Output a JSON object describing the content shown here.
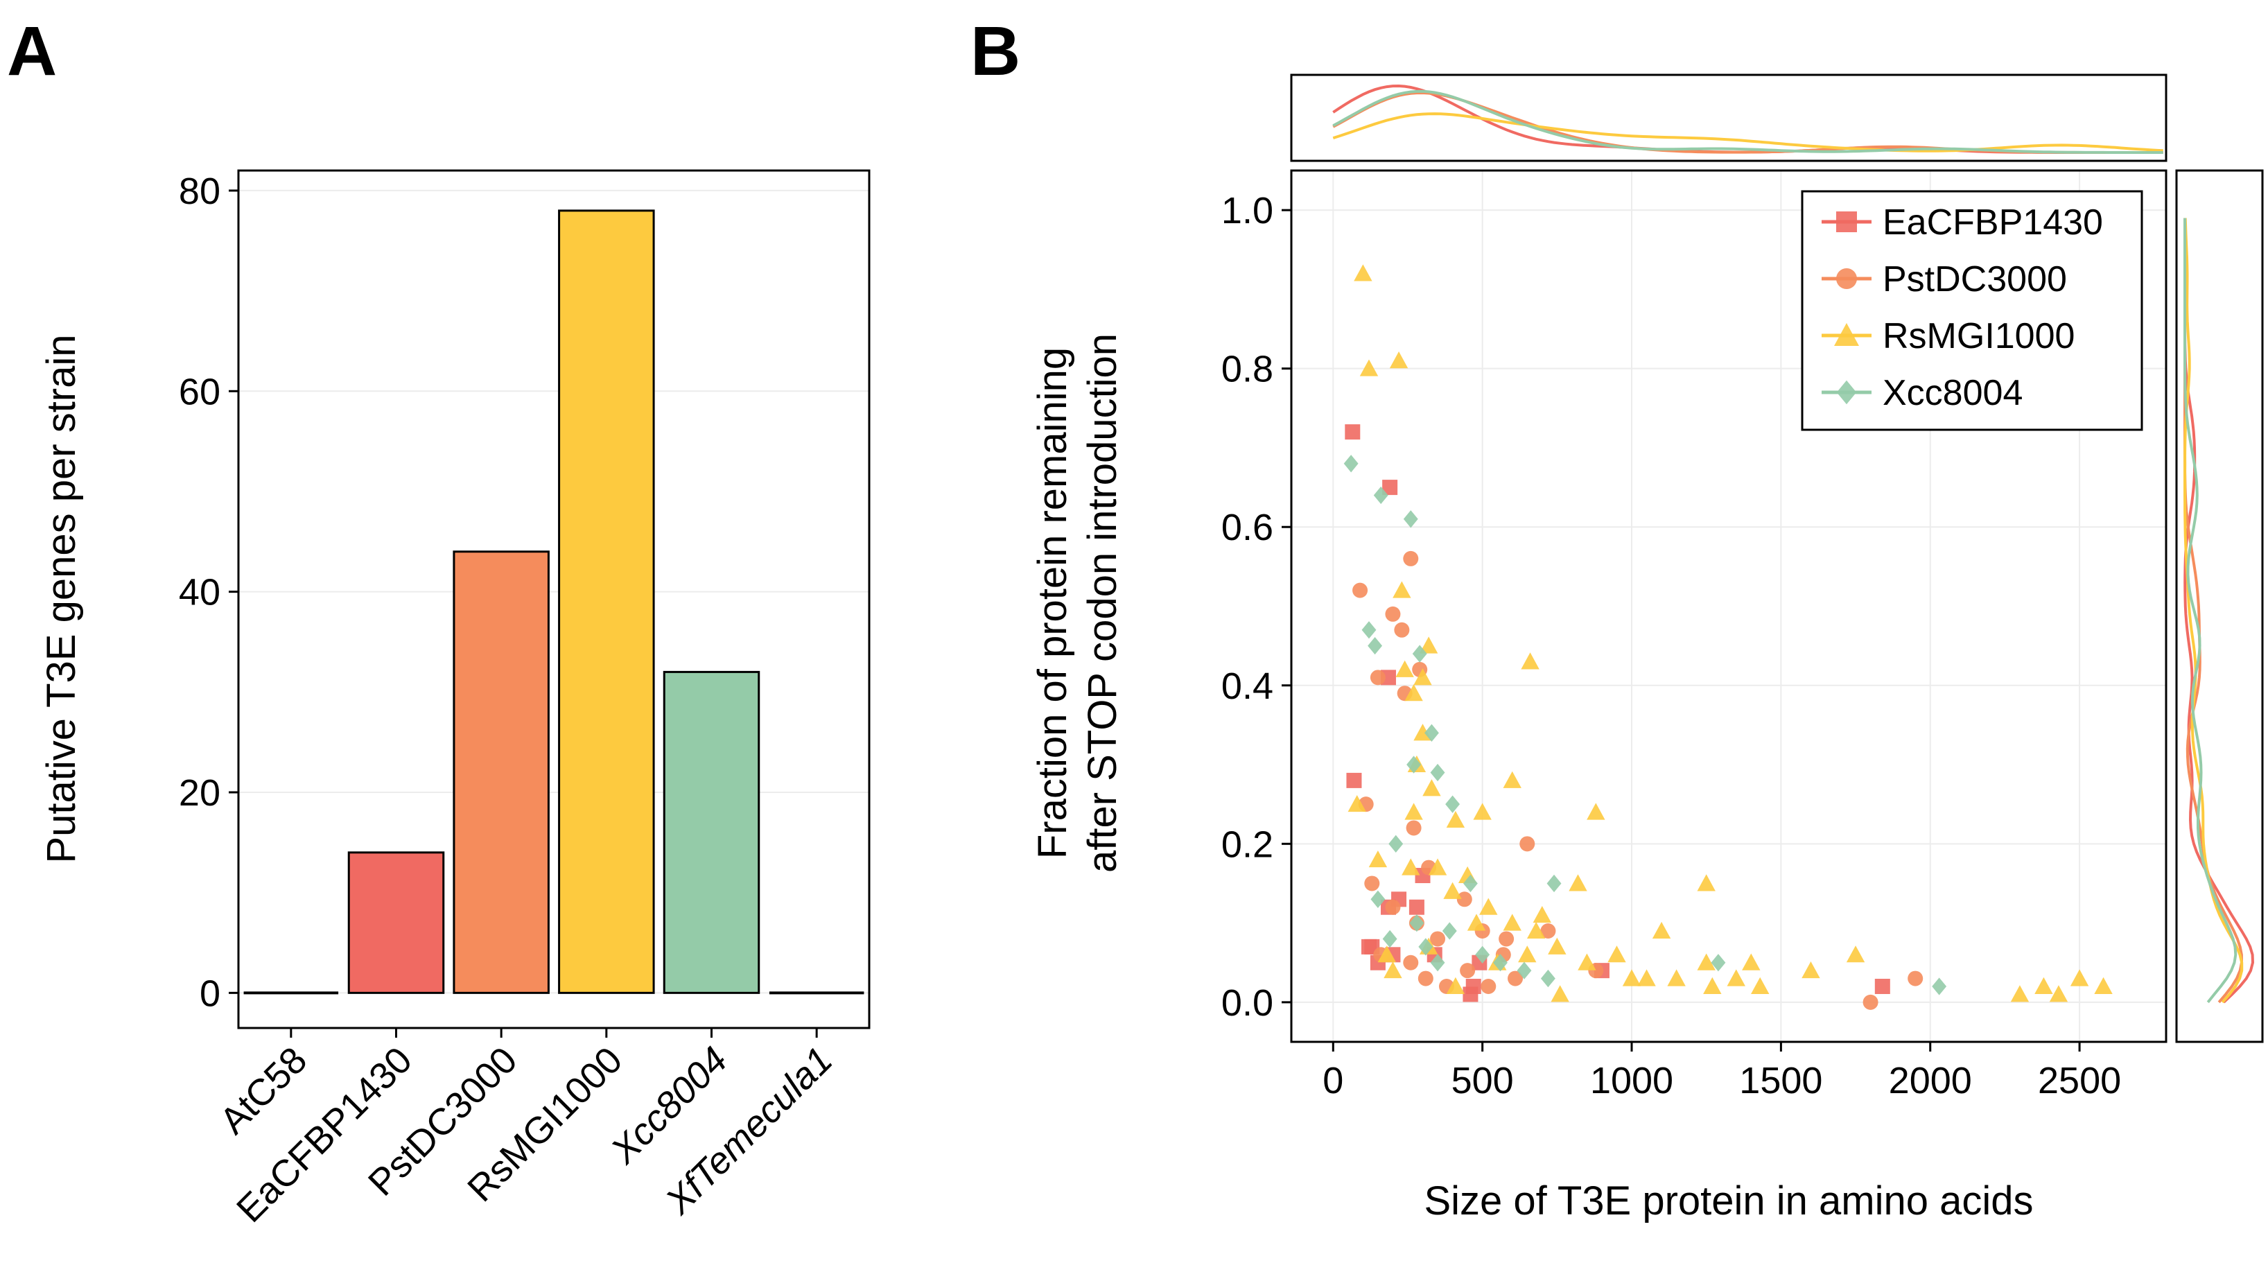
{
  "panels": {
    "a_label": "A",
    "b_label": "B"
  },
  "chart_data": [
    {
      "type": "bar",
      "panel": "A",
      "categories": [
        "AtC58",
        "EaCFBP1430",
        "PstDC3000",
        "RsMGI1000",
        "Xcc8004",
        "XfTemecula1"
      ],
      "italic_categories": [
        "Xcc8004",
        "XfTemecula1"
      ],
      "values": [
        0,
        14,
        44,
        78,
        32,
        0
      ],
      "colors": [
        "#f06a62",
        "#f06a62",
        "#f58c5c",
        "#fdca3f",
        "#94cba8",
        "#94cba8"
      ],
      "xlabel": "",
      "ylabel": "Putative T3E genes per strain",
      "ylim": [
        -3.5,
        82
      ],
      "yticks": [
        0,
        20,
        40,
        60,
        80
      ],
      "grid": true
    },
    {
      "type": "scatter",
      "panel": "B",
      "xlabel": "Size of T3E protein in amino acids",
      "ylabel_lines": [
        "Fraction of protein remaining",
        "after STOP codon introduction"
      ],
      "xlim": [
        -140,
        2790
      ],
      "ylim": [
        -0.05,
        1.05
      ],
      "xticks": [
        0,
        500,
        1000,
        1500,
        2000,
        2500
      ],
      "yticks": [
        "0.0",
        "0.2",
        "0.4",
        "0.6",
        "0.8",
        "1.0"
      ],
      "legend_position": "top-right",
      "grid": true,
      "marginal_density": true,
      "series": [
        {
          "name": "EaCFBP1430",
          "marker": "square",
          "color": "#f06a62",
          "x": [
            65,
            190,
            185,
            70,
            185,
            130,
            280,
            340,
            120,
            150,
            200,
            460,
            900,
            1840,
            300,
            220,
            470,
            490
          ],
          "y": [
            0.72,
            0.65,
            0.41,
            0.28,
            0.12,
            0.07,
            0.12,
            0.06,
            0.07,
            0.05,
            0.06,
            0.01,
            0.04,
            0.02,
            0.16,
            0.13,
            0.02,
            0.05
          ]
        },
        {
          "name": "PstDC3000",
          "marker": "circle",
          "color": "#f58c5c",
          "x": [
            90,
            260,
            200,
            230,
            150,
            290,
            240,
            110,
            270,
            320,
            130,
            200,
            280,
            350,
            500,
            650,
            570,
            450,
            580,
            720,
            880,
            1800,
            1950,
            260,
            310,
            380,
            160,
            520,
            440,
            610
          ],
          "y": [
            0.52,
            0.56,
            0.49,
            0.47,
            0.41,
            0.42,
            0.39,
            0.25,
            0.22,
            0.17,
            0.15,
            0.12,
            0.1,
            0.08,
            0.09,
            0.2,
            0.06,
            0.04,
            0.08,
            0.09,
            0.04,
            0.0,
            0.03,
            0.05,
            0.03,
            0.02,
            0.06,
            0.02,
            0.13,
            0.03
          ]
        },
        {
          "name": "RsMGI1000",
          "marker": "triangle",
          "color": "#fdca3f",
          "x": [
            100,
            120,
            220,
            230,
            320,
            240,
            300,
            270,
            300,
            280,
            330,
            660,
            270,
            410,
            600,
            500,
            80,
            150,
            260,
            350,
            880,
            400,
            450,
            520,
            600,
            680,
            700,
            750,
            820,
            850,
            950,
            1000,
            1050,
            1150,
            1250,
            1270,
            1350,
            1400,
            1430,
            1750,
            2300,
            2380,
            2430,
            2500,
            2580,
            1250,
            1600,
            1100,
            550,
            650,
            480,
            320,
            180,
            200,
            410,
            760
          ],
          "y": [
            0.92,
            0.8,
            0.81,
            0.52,
            0.45,
            0.42,
            0.41,
            0.39,
            0.34,
            0.3,
            0.27,
            0.43,
            0.24,
            0.23,
            0.28,
            0.24,
            0.25,
            0.18,
            0.17,
            0.17,
            0.24,
            0.14,
            0.16,
            0.12,
            0.1,
            0.09,
            0.11,
            0.07,
            0.15,
            0.05,
            0.06,
            0.03,
            0.03,
            0.03,
            0.05,
            0.02,
            0.03,
            0.05,
            0.02,
            0.06,
            0.01,
            0.02,
            0.01,
            0.03,
            0.02,
            0.15,
            0.04,
            0.09,
            0.05,
            0.06,
            0.1,
            0.07,
            0.06,
            0.04,
            0.02,
            0.01
          ]
        },
        {
          "name": "Xcc8004",
          "marker": "diamond",
          "color": "#94cba8",
          "x": [
            60,
            160,
            260,
            120,
            140,
            290,
            330,
            270,
            350,
            400,
            740,
            460,
            390,
            190,
            280,
            500,
            560,
            720,
            1290,
            2030,
            210,
            150,
            640,
            350,
            310
          ],
          "y": [
            0.68,
            0.64,
            0.61,
            0.47,
            0.45,
            0.44,
            0.34,
            0.3,
            0.29,
            0.25,
            0.15,
            0.15,
            0.09,
            0.08,
            0.1,
            0.06,
            0.05,
            0.03,
            0.05,
            0.02,
            0.2,
            0.13,
            0.04,
            0.05,
            0.07
          ]
        }
      ]
    }
  ]
}
